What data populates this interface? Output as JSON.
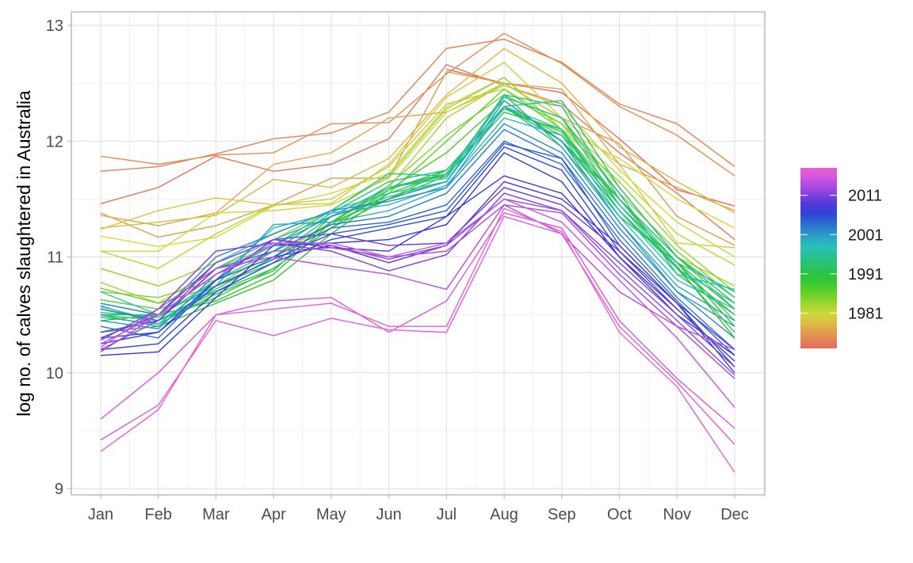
{
  "chart_data": {
    "type": "line",
    "title": "",
    "xlabel": "",
    "ylabel": "log no. of calves slaughtered in Australia",
    "categories": [
      "Jan",
      "Feb",
      "Mar",
      "Apr",
      "May",
      "Jun",
      "Jul",
      "Aug",
      "Sep",
      "Oct",
      "Nov",
      "Dec"
    ],
    "ylim": [
      9,
      13
    ],
    "yticks": [
      9,
      10,
      11,
      12,
      13
    ],
    "grid": true,
    "legend": {
      "position": "right",
      "type": "colorbar",
      "ticks": [
        1981,
        1991,
        2001,
        2011
      ],
      "range": [
        1972,
        2018
      ],
      "color_low": "#F8766D",
      "color_high": "#F564E3"
    },
    "series": [
      {
        "year": 1972,
        "values": [
          null,
          null,
          null,
          null,
          null,
          null,
          12.62,
          12.5,
          12.42,
          12.02,
          11.58,
          11.44
        ]
      },
      {
        "year": 1973,
        "values": [
          11.46,
          11.6,
          11.87,
          11.74,
          11.8,
          12.02,
          12.66,
          12.48,
          12.32,
          11.9,
          11.55,
          11.15
        ]
      },
      {
        "year": 1974,
        "values": [
          11.74,
          11.78,
          11.89,
          12.02,
          12.07,
          12.25,
          12.8,
          12.88,
          12.68,
          12.32,
          12.15,
          11.78
        ]
      },
      {
        "year": 1975,
        "values": [
          11.87,
          11.8,
          11.88,
          11.9,
          12.15,
          12.16,
          12.58,
          12.93,
          12.67,
          12.3,
          12.05,
          11.7
        ]
      },
      {
        "year": 1976,
        "values": [
          11.38,
          11.17,
          11.27,
          11.45,
          11.68,
          11.68,
          12.6,
          12.5,
          12.2,
          11.98,
          11.35,
          11.1
        ]
      },
      {
        "year": 1977,
        "values": [
          11.36,
          11.27,
          11.38,
          11.8,
          11.9,
          12.2,
          12.25,
          12.5,
          12.45,
          11.8,
          11.6,
          11.4
        ]
      },
      {
        "year": 1978,
        "values": [
          11.25,
          11.3,
          11.36,
          11.67,
          11.6,
          11.85,
          12.4,
          12.8,
          12.5,
          11.95,
          11.65,
          11.38
        ]
      },
      {
        "year": 1979,
        "values": [
          11.24,
          11.4,
          11.51,
          11.45,
          11.46,
          11.8,
          12.38,
          12.68,
          12.2,
          11.8,
          11.12,
          11.08
        ]
      },
      {
        "year": 1980,
        "values": [
          11.18,
          11.09,
          11.17,
          11.44,
          11.55,
          11.72,
          12.3,
          12.55,
          12.1,
          11.85,
          11.5,
          11.25
        ]
      },
      {
        "year": 1981,
        "values": [
          11.05,
          11.05,
          11.38,
          11.4,
          11.45,
          11.68,
          12.25,
          12.48,
          12.3,
          11.75,
          11.3,
          11.0
        ]
      },
      {
        "year": 1982,
        "values": [
          11.05,
          10.9,
          11.2,
          11.45,
          11.5,
          11.78,
          12.32,
          12.45,
          12.15,
          11.7,
          11.2,
          10.93
        ]
      },
      {
        "year": 1983,
        "values": [
          10.78,
          10.6,
          10.9,
          11.1,
          11.35,
          11.6,
          12.2,
          12.5,
          12.2,
          11.6,
          11.0,
          10.75
        ]
      },
      {
        "year": 1984,
        "values": [
          10.9,
          10.75,
          10.95,
          11.15,
          11.4,
          11.7,
          12.28,
          12.55,
          12.1,
          11.65,
          11.1,
          10.7
        ]
      },
      {
        "year": 1985,
        "values": [
          10.7,
          10.65,
          10.8,
          11.0,
          11.3,
          11.62,
          12.05,
          12.4,
          12.15,
          11.55,
          11.05,
          10.65
        ]
      },
      {
        "year": 1986,
        "values": [
          10.73,
          10.6,
          10.75,
          11.05,
          11.28,
          11.55,
          12.0,
          12.45,
          12.1,
          11.5,
          11.0,
          10.55
        ]
      },
      {
        "year": 1987,
        "values": [
          10.63,
          10.55,
          10.7,
          10.95,
          11.3,
          11.58,
          11.9,
          12.35,
          12.0,
          11.45,
          10.95,
          10.45
        ]
      },
      {
        "year": 1988,
        "values": [
          10.5,
          10.45,
          10.65,
          10.9,
          11.25,
          11.5,
          11.75,
          12.3,
          12.05,
          11.5,
          10.9,
          10.35
        ]
      },
      {
        "year": 1989,
        "values": [
          10.35,
          10.4,
          10.6,
          10.8,
          11.2,
          11.55,
          11.72,
          12.28,
          12.08,
          11.4,
          10.92,
          10.3
        ]
      },
      {
        "year": 1990,
        "values": [
          10.45,
          10.5,
          10.62,
          10.85,
          11.3,
          11.5,
          11.7,
          12.4,
          11.95,
          11.35,
          10.95,
          10.4
        ]
      },
      {
        "year": 1991,
        "values": [
          10.55,
          10.45,
          10.7,
          10.9,
          11.25,
          11.58,
          11.75,
          12.3,
          12.0,
          11.4,
          10.9,
          10.5
        ]
      },
      {
        "year": 1992,
        "values": [
          10.5,
          10.5,
          10.75,
          10.95,
          11.3,
          11.6,
          11.7,
          12.25,
          12.1,
          11.45,
          10.95,
          10.55
        ]
      },
      {
        "year": 1993,
        "values": [
          10.48,
          10.42,
          10.68,
          10.88,
          11.35,
          11.52,
          11.65,
          12.35,
          12.0,
          11.5,
          11.0,
          10.6
        ]
      },
      {
        "year": 1994,
        "values": [
          10.55,
          10.45,
          10.72,
          11.0,
          11.35,
          11.6,
          11.72,
          12.38,
          12.2,
          11.55,
          10.85,
          10.5
        ]
      },
      {
        "year": 1995,
        "values": [
          10.52,
          10.48,
          10.8,
          11.05,
          11.38,
          11.65,
          11.75,
          12.3,
          12.35,
          11.6,
          11.0,
          10.65
        ]
      },
      {
        "year": 1996,
        "values": [
          10.6,
          10.5,
          10.85,
          11.1,
          11.4,
          11.72,
          11.7,
          12.4,
          12.3,
          11.5,
          10.95,
          10.7
        ]
      },
      {
        "year": 1997,
        "values": [
          10.57,
          10.45,
          10.9,
          11.15,
          11.35,
          11.6,
          11.68,
          12.38,
          12.2,
          11.45,
          10.9,
          10.6
        ]
      },
      {
        "year": 1998,
        "values": [
          10.7,
          10.5,
          10.95,
          11.2,
          11.4,
          11.55,
          11.65,
          12.3,
          12.1,
          11.4,
          10.85,
          10.72
        ]
      },
      {
        "year": 1999,
        "values": [
          10.58,
          10.42,
          10.8,
          11.25,
          11.38,
          11.45,
          11.62,
          12.2,
          12.05,
          11.35,
          10.8,
          10.55
        ]
      },
      {
        "year": 2000,
        "values": [
          10.5,
          10.4,
          10.75,
          11.28,
          11.3,
          11.4,
          11.6,
          12.3,
          11.95,
          11.3,
          10.75,
          10.45
        ]
      },
      {
        "year": 2001,
        "values": [
          10.45,
          10.38,
          10.85,
          11.1,
          11.35,
          11.5,
          11.65,
          12.35,
          12.0,
          11.3,
          10.7,
          10.4
        ]
      },
      {
        "year": 2002,
        "values": [
          10.6,
          10.5,
          11.0,
          11.2,
          11.4,
          11.48,
          11.6,
          12.15,
          11.9,
          11.25,
          10.7,
          10.3
        ]
      },
      {
        "year": 2003,
        "values": [
          10.55,
          10.45,
          10.9,
          11.05,
          11.28,
          11.35,
          11.55,
          12.1,
          11.85,
          11.2,
          10.65,
          10.2
        ]
      },
      {
        "year": 2004,
        "values": [
          10.4,
          10.3,
          10.8,
          11.0,
          11.25,
          11.3,
          11.45,
          12.0,
          11.8,
          11.15,
          10.62,
          10.15
        ]
      },
      {
        "year": 2005,
        "values": [
          10.3,
          10.35,
          10.75,
          10.98,
          11.2,
          11.28,
          11.4,
          11.98,
          11.85,
          11.1,
          10.6,
          10.05
        ]
      },
      {
        "year": 2006,
        "values": [
          10.2,
          10.25,
          10.7,
          10.95,
          11.15,
          11.25,
          11.35,
          11.95,
          11.75,
          11.05,
          10.6,
          10.0
        ]
      },
      {
        "year": 2007,
        "values": [
          10.15,
          10.18,
          10.65,
          11.1,
          11.12,
          11.15,
          11.28,
          11.9,
          11.65,
          11.0,
          10.55,
          10.1
        ]
      },
      {
        "year": 2008,
        "values": [
          10.25,
          10.35,
          10.8,
          11.15,
          11.08,
          11.05,
          11.35,
          11.7,
          11.55,
          11.0,
          10.5,
          10.15
        ]
      },
      {
        "year": 2009,
        "values": [
          10.35,
          10.45,
          10.9,
          11.0,
          11.1,
          10.95,
          11.1,
          11.65,
          11.5,
          11.1,
          10.6,
          10.2
        ]
      },
      {
        "year": 2010,
        "values": [
          10.3,
          10.5,
          10.95,
          11.15,
          11.2,
          11.1,
          11.12,
          11.6,
          11.45,
          11.05,
          10.55,
          10.1
        ]
      },
      {
        "year": 2011,
        "values": [
          10.28,
          10.55,
          11.05,
          11.12,
          11.05,
          10.88,
          11.02,
          11.55,
          11.4,
          10.95,
          10.5,
          10.05
        ]
      },
      {
        "year": 2012,
        "values": [
          10.2,
          10.45,
          10.95,
          11.15,
          11.1,
          10.98,
          11.1,
          11.5,
          11.4,
          10.9,
          10.45,
          9.98
        ]
      },
      {
        "year": 2013,
        "values": [
          10.18,
          10.5,
          10.85,
          11.05,
          11.08,
          11.0,
          11.05,
          11.45,
          11.38,
          10.85,
          10.4,
          9.95
        ]
      },
      {
        "year": 2014,
        "values": [
          10.22,
          10.55,
          10.9,
          11.0,
          10.92,
          10.85,
          10.72,
          11.45,
          11.2,
          10.7,
          10.4,
          10.2
        ]
      },
      {
        "year": 2015,
        "values": [
          10.25,
          10.5,
          10.85,
          11.12,
          11.12,
          11.0,
          11.12,
          11.5,
          11.3,
          10.8,
          10.3,
          9.7
        ]
      },
      {
        "year": 2016,
        "values": [
          9.6,
          10.0,
          10.5,
          10.62,
          10.65,
          10.35,
          10.62,
          11.38,
          11.25,
          10.45,
          9.95,
          9.52
        ]
      },
      {
        "year": 2017,
        "values": [
          9.42,
          9.72,
          10.45,
          10.32,
          10.47,
          10.37,
          10.35,
          11.35,
          11.2,
          10.4,
          9.92,
          9.38
        ]
      },
      {
        "year": 2018,
        "values": [
          9.32,
          9.68,
          10.5,
          10.55,
          10.6,
          10.4,
          10.4,
          11.42,
          11.22,
          10.35,
          9.88,
          9.14
        ]
      }
    ]
  }
}
